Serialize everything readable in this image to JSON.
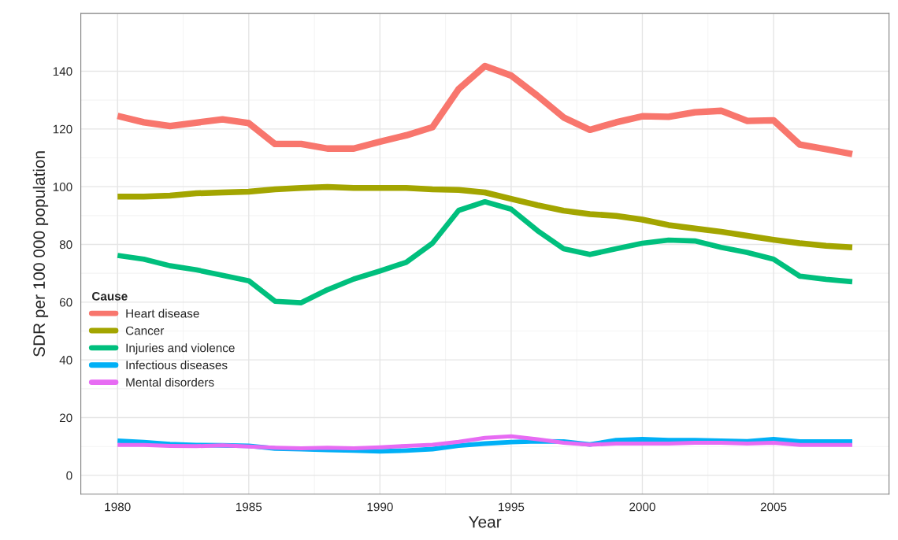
{
  "chart_data": {
    "type": "line",
    "xlabel": "Year",
    "ylabel": "SDR per 100 000 population",
    "legend_title": "Cause",
    "x": [
      1980,
      1981,
      1982,
      1983,
      1984,
      1985,
      1986,
      1987,
      1988,
      1989,
      1990,
      1991,
      1992,
      1993,
      1994,
      1995,
      1996,
      1997,
      1998,
      1999,
      2000,
      2001,
      2002,
      2003,
      2004,
      2005,
      2006,
      2007,
      2008
    ],
    "series": [
      {
        "name": "Heart disease",
        "color": "#f8766d",
        "values": [
          124.5,
          122.3,
          121,
          122.2,
          123.3,
          122,
          114.8,
          114.8,
          113.2,
          113.2,
          115.6,
          117.8,
          120.6,
          133.8,
          141.8,
          138.5,
          131.5,
          124,
          119.7,
          122.3,
          124.4,
          124.2,
          125.8,
          126.3,
          122.8,
          123,
          114.6,
          113,
          111.3
        ]
      },
      {
        "name": "Cancer",
        "color": "#a3a500",
        "values": [
          96.6,
          96.6,
          96.9,
          97.7,
          98,
          98.3,
          99.1,
          99.6,
          99.9,
          99.6,
          99.6,
          99.6,
          99.1,
          98.9,
          98,
          95.8,
          93.6,
          91.7,
          90.5,
          89.9,
          88.6,
          86.7,
          85.5,
          84.4,
          83,
          81.6,
          80.4,
          79.5,
          79
        ]
      },
      {
        "name": "Injuries and violence",
        "color": "#00bf7d",
        "values": [
          76.2,
          74.9,
          72.6,
          71.2,
          69.3,
          67.4,
          60.3,
          59.8,
          64.3,
          68,
          70.8,
          73.8,
          80.4,
          91.8,
          94.8,
          92.2,
          84.8,
          78.5,
          76.5,
          78.5,
          80.4,
          81.5,
          81.2,
          79,
          77.2,
          74.9,
          69,
          67.9,
          67.1
        ]
      },
      {
        "name": "Infectious diseases",
        "color": "#00b0f6",
        "values": [
          12,
          11.5,
          10.8,
          10.5,
          10.4,
          10.2,
          9.3,
          9.1,
          8.8,
          8.6,
          8.3,
          8.6,
          9.1,
          10.3,
          11,
          11.5,
          11.8,
          11.7,
          10.7,
          12.2,
          12.5,
          12.2,
          12.2,
          12,
          11.8,
          12.5,
          11.7,
          11.7,
          11.7
        ]
      },
      {
        "name": "Mental disorders",
        "color": "#e76bf3",
        "values": [
          10.5,
          10.5,
          10.2,
          10.1,
          10.4,
          10,
          9.6,
          9.4,
          9.6,
          9.4,
          9.7,
          10.2,
          10.6,
          11.6,
          13,
          13.5,
          12.5,
          11.3,
          10.6,
          11,
          11,
          11,
          11.3,
          11.3,
          11,
          11.3,
          10.5,
          10.5,
          10.5
        ]
      }
    ],
    "xlim": [
      1978.6,
      2009.4
    ],
    "ylim": [
      -6.5,
      160
    ],
    "xticks": [
      1980,
      1985,
      1990,
      1995,
      2000,
      2005
    ],
    "yticks": [
      0,
      20,
      40,
      60,
      80,
      100,
      120,
      140
    ],
    "grid": true,
    "legend": "left",
    "marker": "none",
    "line_style": "solid"
  }
}
